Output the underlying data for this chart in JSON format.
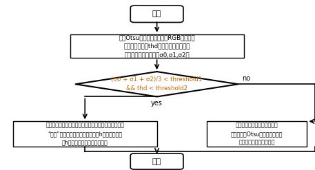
{
  "bg_color": "#ffffff",
  "start_end_color": "#ffffff",
  "start_end_edge": "#000000",
  "box_color": "#ffffff",
  "box_edge": "#000000",
  "diamond_color": "#ffffff",
  "diamond_edge": "#000000",
  "text_color_condition": "#cc6600",
  "text_color_main": "#000000",
  "label_start": "开始",
  "label_end": "结束",
  "label_box1_l1": "利用Otsu算法获取额头区域RGB三个通道",
  "label_box1_l2": "的最佳分割阈值thd，并计算该阈值下三",
  "label_box1_l3": "个通道的额头区域方差σ0,σ1,σ2。",
  "label_diamond_l1": "(σ0 + σ1 + σ2)/3 < threshold1",
  "label_diamond_l2": "&& thd < threshold2",
  "label_yes_l1": "额头被完全遮挡：提取眉毛下沿区域作为测温有效区。",
  "label_yes_l2": "“额头”区域：额头定位框向下平移h所覆盖的区域",
  "label_yes_l3": "（h为额头定位框最小高度）。",
  "label_no_l1": "将额头区域三通道数据转为单",
  "label_no_l2": "通道，应用Otsu进行图像分割，",
  "label_no_l3": "得到额头的有效测温区。",
  "label_yes": "yes",
  "label_no": "no"
}
